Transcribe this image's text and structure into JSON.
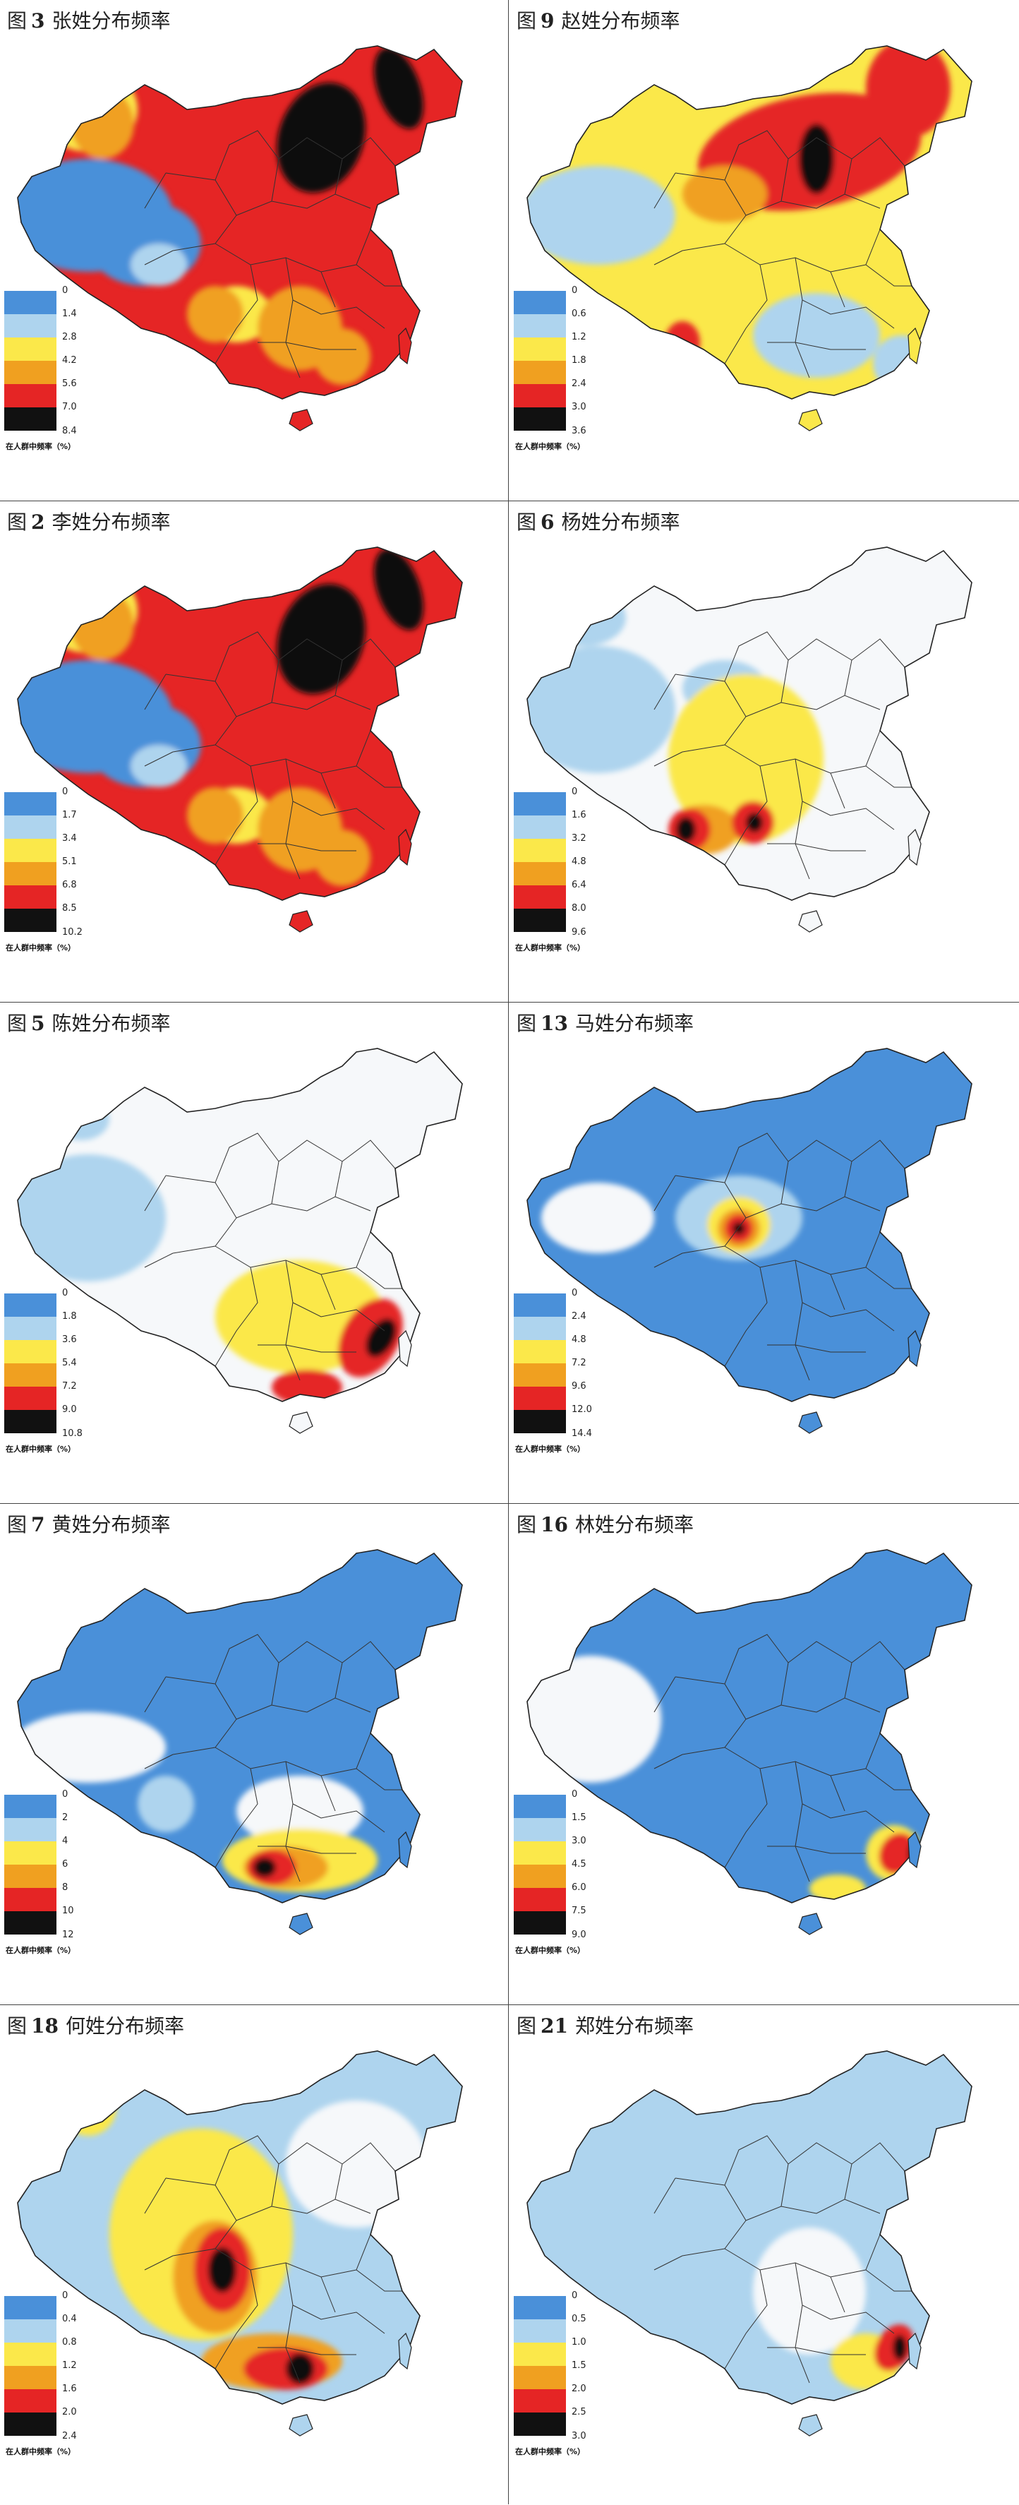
{
  "unit_label": "在人群中频率（%）",
  "colors": {
    "white": "#f6f8fa",
    "blue": "#4a90d9",
    "lightblue": "#aed4ee",
    "yellow": "#fbe84a",
    "orange": "#f0a020",
    "red": "#e52525",
    "black": "#111111"
  },
  "panels": [
    {
      "fig": "图",
      "num": "3",
      "name": "张姓分布频率",
      "legend": [
        "0",
        "1.4",
        "2.8",
        "4.2",
        "5.6",
        "7.0",
        "8.4"
      ],
      "scheme": "high"
    },
    {
      "fig": "图",
      "num": "9",
      "name": "赵姓分布频率",
      "legend": [
        "0",
        "0.6",
        "1.2",
        "1.8",
        "2.4",
        "3.0",
        "3.6"
      ],
      "scheme": "north"
    },
    {
      "fig": "图",
      "num": "2",
      "name": "李姓分布频率",
      "legend": [
        "0",
        "1.7",
        "3.4",
        "5.1",
        "6.8",
        "8.5",
        "10.2"
      ],
      "scheme": "high"
    },
    {
      "fig": "图",
      "num": "6",
      "name": "杨姓分布频率",
      "legend": [
        "0",
        "1.6",
        "3.2",
        "4.8",
        "6.4",
        "8.0",
        "9.6"
      ],
      "scheme": "southwest"
    },
    {
      "fig": "图",
      "num": "5",
      "name": "陈姓分布频率",
      "legend": [
        "0",
        "1.8",
        "3.6",
        "5.4",
        "7.2",
        "9.0",
        "10.8"
      ],
      "scheme": "southeast"
    },
    {
      "fig": "图",
      "num": "13",
      "name": "马姓分布频率",
      "legend": [
        "0",
        "2.4",
        "4.8",
        "7.2",
        "9.6",
        "12.0",
        "14.4"
      ],
      "scheme": "northwest"
    },
    {
      "fig": "图",
      "num": "7",
      "name": "黄姓分布频率",
      "legend": [
        "0",
        "2",
        "4",
        "6",
        "8",
        "10",
        "12"
      ],
      "scheme": "south"
    },
    {
      "fig": "图",
      "num": "16",
      "name": "林姓分布频率",
      "legend": [
        "0",
        "1.5",
        "3.0",
        "4.5",
        "6.0",
        "7.5",
        "9.0"
      ],
      "scheme": "fujian"
    },
    {
      "fig": "图",
      "num": "18",
      "name": "何姓分布频率",
      "legend": [
        "0",
        "0.4",
        "0.8",
        "1.2",
        "1.6",
        "2.0",
        "2.4"
      ],
      "scheme": "central"
    },
    {
      "fig": "图",
      "num": "21",
      "name": "郑姓分布频率",
      "legend": [
        "0",
        "0.5",
        "1.0",
        "1.5",
        "2.0",
        "2.5",
        "3.0"
      ],
      "scheme": "fujian2"
    }
  ]
}
